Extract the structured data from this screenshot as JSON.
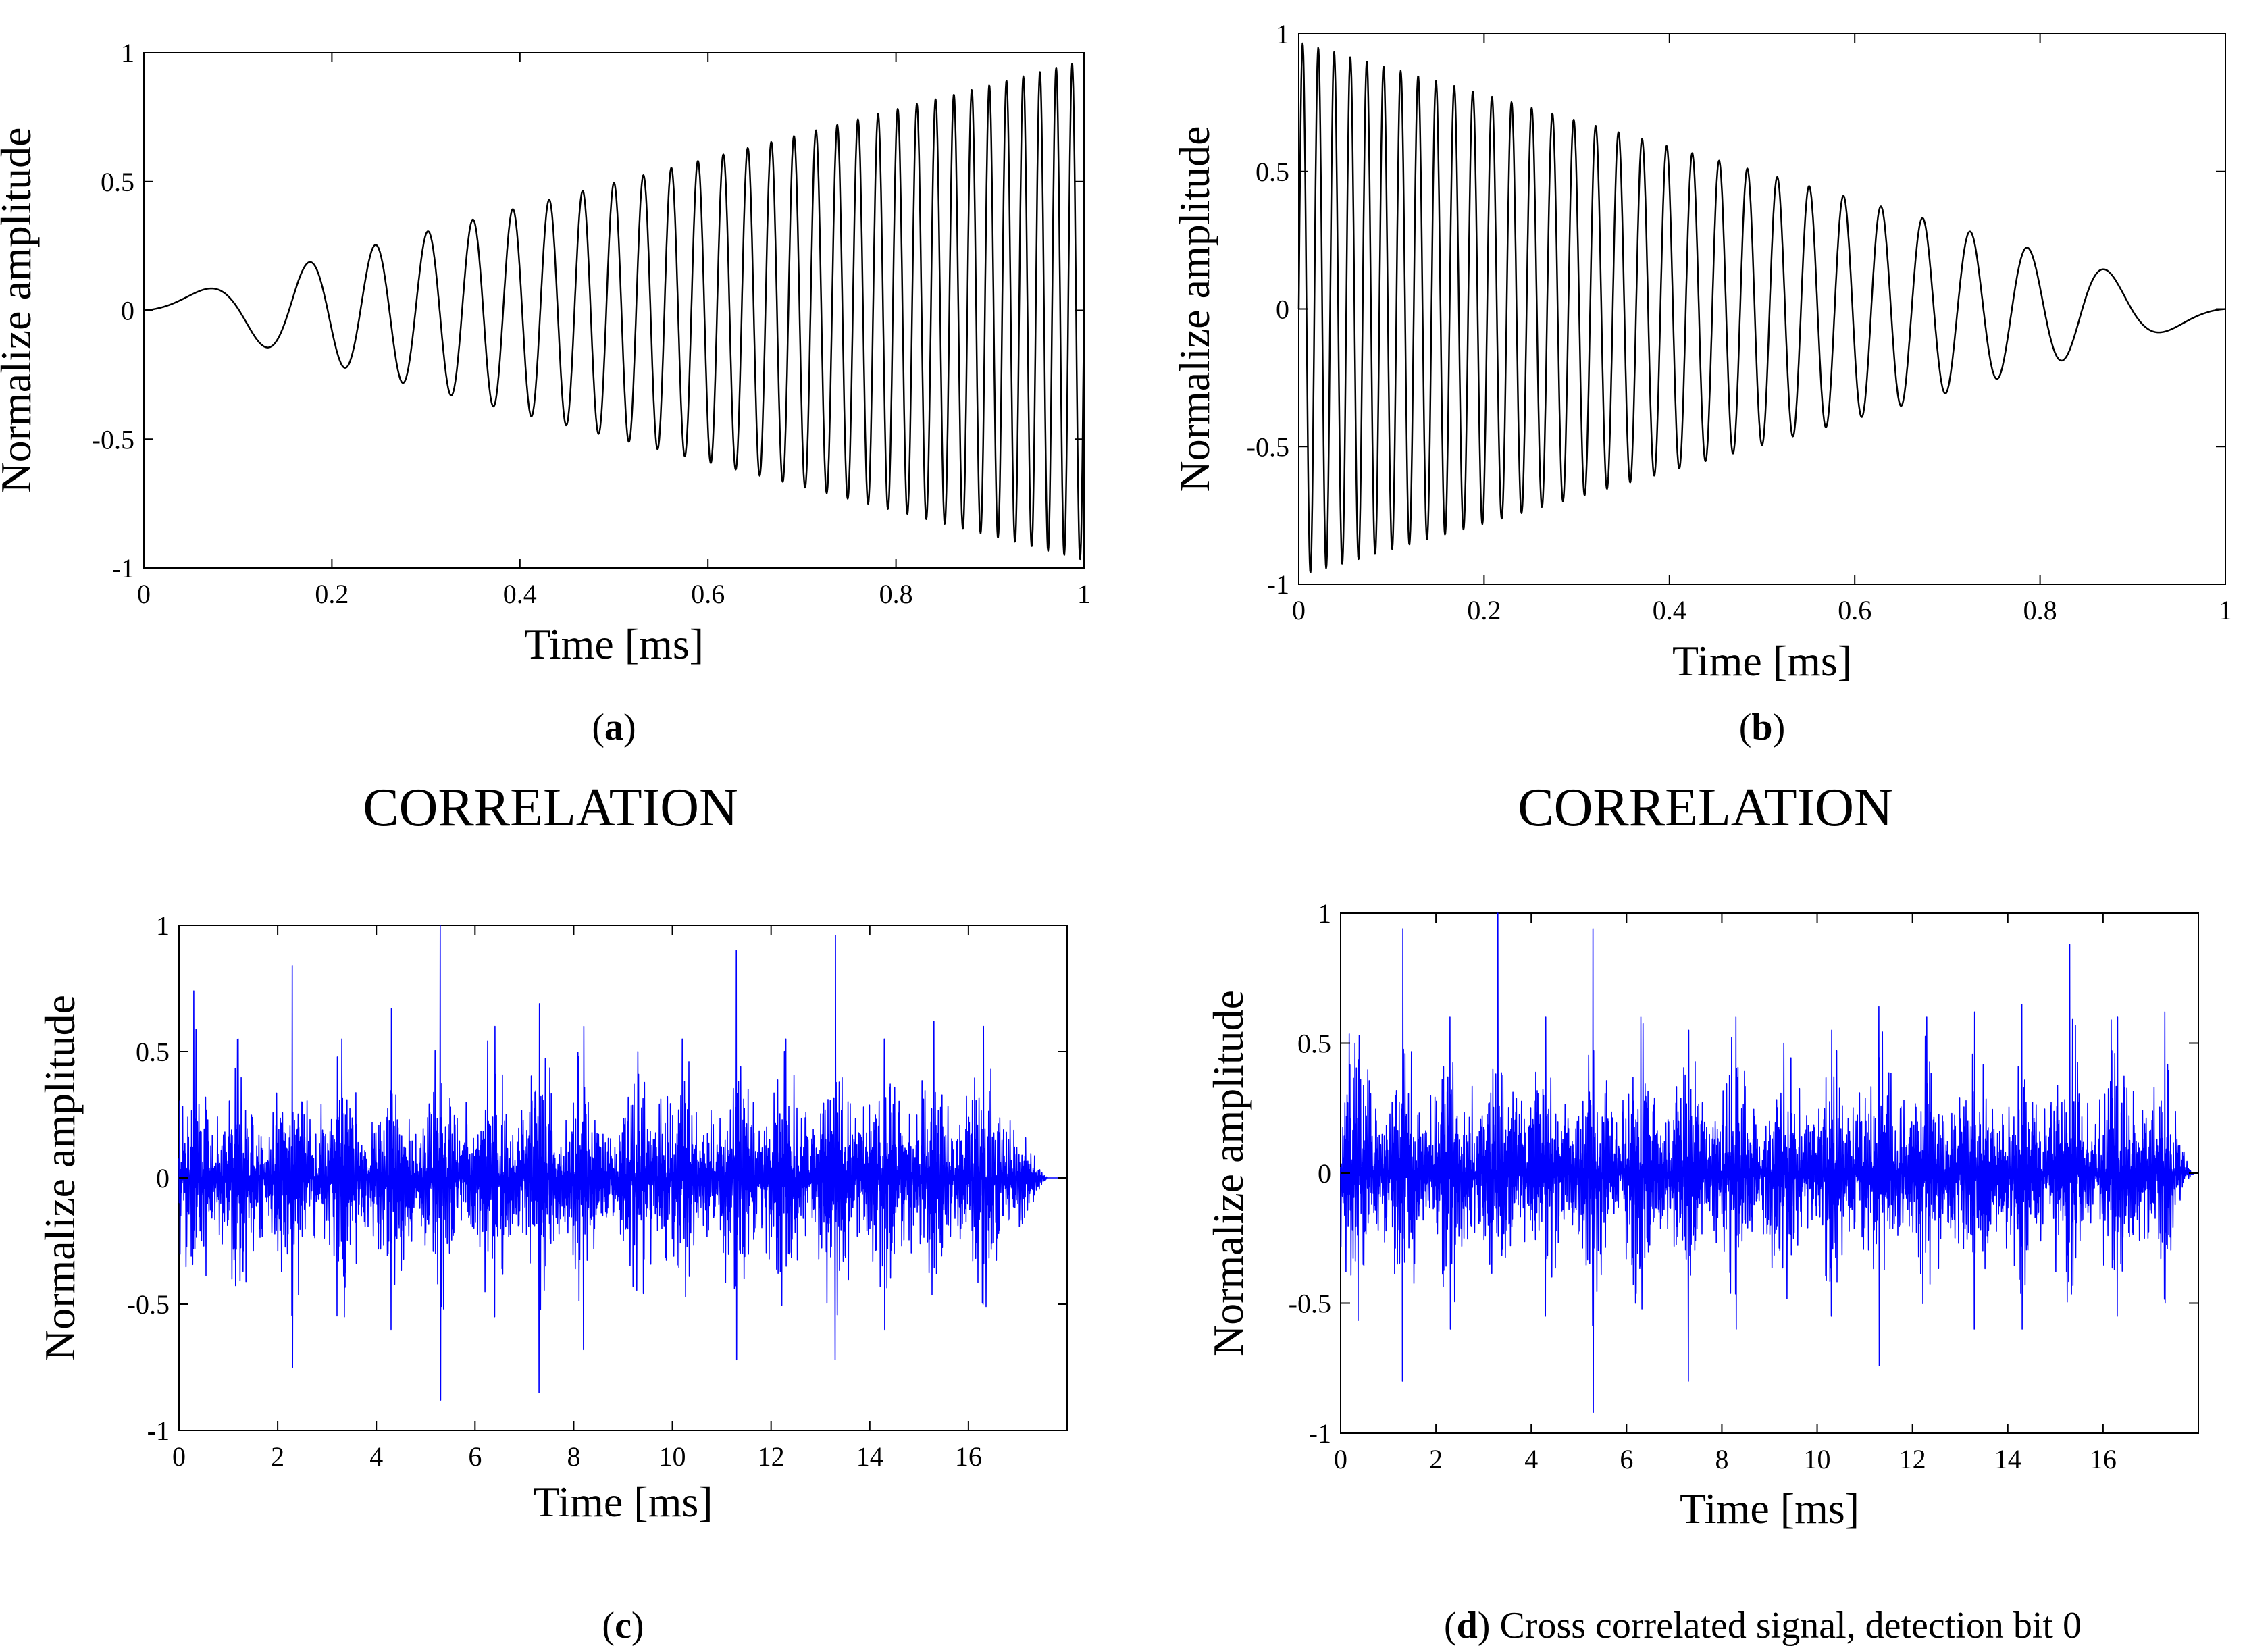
{
  "figure": {
    "correlation_labels": [
      "CORRELATION",
      "CORRELATION"
    ]
  },
  "chart_data": [
    {
      "id": "a",
      "type": "line",
      "title": "",
      "caption_letter": "a",
      "caption_text": "",
      "xlabel": "Time [ms]",
      "ylabel": "Normalize amplitude",
      "xlim": [
        0,
        1
      ],
      "ylim": [
        -1,
        1
      ],
      "xticks": [
        0,
        0.2,
        0.4,
        0.6,
        0.8,
        1
      ],
      "xtick_labels": [
        "0",
        "0.2",
        "0.4",
        "0.6",
        "0.8",
        "1"
      ],
      "yticks": [
        -1,
        -0.5,
        0,
        0.5,
        1
      ],
      "ytick_labels": [
        "-1",
        "-0.5",
        "0",
        "0.5",
        "1"
      ],
      "grid": false,
      "color": "#000000",
      "signal": {
        "kind": "chirp",
        "direction": "up",
        "start_freq_khz": 2,
        "end_freq_khz": 60,
        "envelope_start": 0.02,
        "envelope_end": 0.97,
        "samples": 2200
      }
    },
    {
      "id": "b",
      "type": "line",
      "title": "",
      "caption_letter": "b",
      "caption_text": "",
      "xlabel": "Time [ms]",
      "ylabel": "Normalize amplitude",
      "xlim": [
        0,
        1
      ],
      "ylim": [
        -1,
        1
      ],
      "xticks": [
        0,
        0.2,
        0.4,
        0.6,
        0.8,
        1
      ],
      "xtick_labels": [
        "0",
        "0.2",
        "0.4",
        "0.6",
        "0.8",
        "1"
      ],
      "yticks": [
        -1,
        -0.5,
        0,
        0.5,
        1
      ],
      "ytick_labels": [
        "-1",
        "-0.5",
        "0",
        "0.5",
        "1"
      ],
      "grid": false,
      "color": "#000000",
      "signal": {
        "kind": "chirp",
        "direction": "down",
        "start_freq_khz": 2,
        "end_freq_khz": 60,
        "envelope_start": 0.02,
        "envelope_end": 0.97,
        "samples": 2200
      }
    },
    {
      "id": "c",
      "type": "line",
      "title": "",
      "caption_letter": "c",
      "caption_text": "",
      "xlabel": "Time [ms]",
      "ylabel": "Normalize amplitude",
      "xlim": [
        0,
        18
      ],
      "ylim": [
        -1,
        1
      ],
      "xticks": [
        0,
        2,
        4,
        6,
        8,
        10,
        12,
        14,
        16
      ],
      "xtick_labels": [
        "0",
        "2",
        "4",
        "6",
        "8",
        "10",
        "12",
        "14",
        "16"
      ],
      "yticks": [
        -1,
        -0.5,
        0,
        0.5,
        1
      ],
      "ytick_labels": [
        "-1",
        "-0.5",
        "0",
        "0.5",
        "1"
      ],
      "grid": false,
      "color": "#0000ff",
      "signal": {
        "kind": "noise",
        "seed": 7,
        "samples": 2400,
        "signal_end_ms": 17.6,
        "base_amplitude": 0.22,
        "burst_times_ms": [
          0.3,
          1.2,
          2.3,
          3.3,
          4.3,
          5.3,
          6.4,
          7.3,
          8.2,
          9.3,
          10.2,
          11.3,
          12.3,
          13.3,
          14.3,
          15.3,
          16.3
        ],
        "burst_peaks": [
          0.74,
          0.55,
          0.84,
          0.55,
          0.67,
          1.0,
          0.6,
          0.69,
          0.6,
          0.5,
          0.55,
          0.9,
          0.55,
          0.96,
          0.55,
          0.62,
          0.6
        ],
        "burst_troughs": [
          -0.6,
          -0.5,
          -0.75,
          -0.55,
          -0.6,
          -0.88,
          -0.55,
          -0.85,
          -0.68,
          -0.6,
          -0.55,
          -0.72,
          -0.55,
          -0.72,
          -0.6,
          -0.55,
          -0.5
        ]
      }
    },
    {
      "id": "d",
      "type": "line",
      "title": "",
      "caption_letter": "d",
      "caption_text": "Cross correlated signal, detection bit 0",
      "xlabel": "Time [ms]",
      "ylabel": "Normalize amplitude",
      "xlim": [
        0,
        18
      ],
      "ylim": [
        -1,
        1
      ],
      "xticks": [
        0,
        2,
        4,
        6,
        8,
        10,
        12,
        14,
        16
      ],
      "xtick_labels": [
        "0",
        "2",
        "4",
        "6",
        "8",
        "10",
        "12",
        "14",
        "16"
      ],
      "yticks": [
        -1,
        -0.5,
        0,
        0.5,
        1
      ],
      "ytick_labels": [
        "-1",
        "-0.5",
        "0",
        "0.5",
        "1"
      ],
      "grid": false,
      "color": "#0000ff",
      "signal": {
        "kind": "noise",
        "seed": 13,
        "samples": 2400,
        "signal_end_ms": 17.9,
        "base_amplitude": 0.22,
        "burst_times_ms": [
          0.3,
          1.3,
          2.3,
          3.3,
          4.3,
          5.3,
          6.3,
          7.3,
          8.3,
          9.3,
          10.3,
          11.3,
          12.3,
          13.3,
          14.3,
          15.3,
          16.3,
          17.3
        ],
        "burst_peaks": [
          0.5,
          0.94,
          0.6,
          1.0,
          0.6,
          0.94,
          0.6,
          0.55,
          0.6,
          0.5,
          0.55,
          0.64,
          0.6,
          0.62,
          0.65,
          0.88,
          0.6,
          0.62
        ],
        "burst_troughs": [
          -0.5,
          -0.8,
          -0.6,
          -0.92,
          -0.55,
          -0.92,
          -0.55,
          -0.8,
          -0.6,
          -0.55,
          -0.55,
          -0.74,
          -0.6,
          -0.6,
          -0.6,
          -0.85,
          -0.55,
          -0.5
        ]
      }
    }
  ]
}
